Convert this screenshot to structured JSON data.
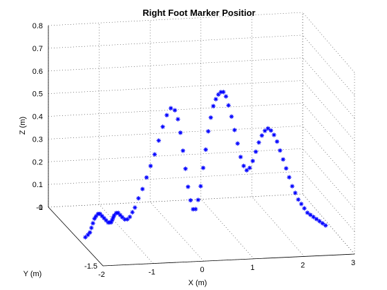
{
  "chart_data": {
    "type": "scatter",
    "title": "Right Foot Marker Positior",
    "xlabel": "X (m)",
    "ylabel": "Y (m)",
    "zlabel": "Z (m)",
    "xlim": [
      -2,
      3
    ],
    "ylim": [
      -1.5,
      -1
    ],
    "zlim": [
      0,
      0.8
    ],
    "xticks": [
      "-2",
      "-1",
      "0",
      "1",
      "2",
      "3"
    ],
    "yticks": [
      "-1.5",
      "-1"
    ],
    "zticks": [
      "0",
      "0.1",
      "0.2",
      "0.3",
      "0.4",
      "0.5",
      "0.6",
      "0.7",
      "0.8"
    ],
    "grid": true,
    "marker": "*",
    "series": [
      {
        "color": "#0000ff",
        "x": [
          -1.83,
          -1.78,
          -1.74,
          -1.71,
          -1.68,
          -1.65,
          -1.62,
          -1.58,
          -1.54,
          -1.5,
          -1.46,
          -1.42,
          -1.38,
          -1.35,
          -1.32,
          -1.3,
          -1.28,
          -1.26,
          -1.22,
          -1.18,
          -1.14,
          -1.1,
          -1.05,
          -1.0,
          -0.95,
          -0.9,
          -0.85,
          -0.78,
          -0.7,
          -0.62,
          -0.54,
          -0.46,
          -0.38,
          -0.3,
          -0.22,
          -0.14,
          -0.06,
          0.0,
          0.05,
          0.1,
          0.15,
          0.2,
          0.25,
          0.3,
          0.35,
          0.4,
          0.45,
          0.5,
          0.55,
          0.6,
          0.65,
          0.7,
          0.75,
          0.8,
          0.85,
          0.9,
          0.95,
          1.0,
          1.06,
          1.12,
          1.18,
          1.24,
          1.3,
          1.36,
          1.42,
          1.48,
          1.54,
          1.6,
          1.66,
          1.72,
          1.78,
          1.84,
          1.9,
          1.96,
          2.02,
          2.08,
          2.14,
          2.2,
          2.26,
          2.32,
          2.38,
          2.44,
          2.5,
          2.56,
          2.62,
          2.68,
          2.74,
          2.8,
          2.86,
          2.92
        ],
        "y": [
          -1.26,
          -1.26,
          -1.26,
          -1.26,
          -1.26,
          -1.26,
          -1.26,
          -1.26,
          -1.26,
          -1.26,
          -1.26,
          -1.26,
          -1.26,
          -1.26,
          -1.26,
          -1.26,
          -1.26,
          -1.26,
          -1.26,
          -1.26,
          -1.26,
          -1.26,
          -1.26,
          -1.26,
          -1.26,
          -1.26,
          -1.26,
          -1.26,
          -1.26,
          -1.26,
          -1.26,
          -1.26,
          -1.26,
          -1.26,
          -1.26,
          -1.26,
          -1.26,
          -1.26,
          -1.26,
          -1.26,
          -1.26,
          -1.26,
          -1.26,
          -1.26,
          -1.26,
          -1.26,
          -1.26,
          -1.26,
          -1.26,
          -1.26,
          -1.26,
          -1.26,
          -1.26,
          -1.26,
          -1.26,
          -1.26,
          -1.26,
          -1.26,
          -1.26,
          -1.26,
          -1.26,
          -1.26,
          -1.26,
          -1.26,
          -1.26,
          -1.26,
          -1.26,
          -1.26,
          -1.26,
          -1.26,
          -1.26,
          -1.26,
          -1.26,
          -1.26,
          -1.26,
          -1.26,
          -1.26,
          -1.26,
          -1.26,
          -1.26,
          -1.26,
          -1.26,
          -1.26,
          -1.26,
          -1.26,
          -1.26,
          -1.26,
          -1.26,
          -1.26,
          -1.26
        ],
        "z": [
          0.0,
          0.01,
          0.02,
          0.04,
          0.06,
          0.08,
          0.09,
          0.1,
          0.1,
          0.09,
          0.08,
          0.07,
          0.06,
          0.06,
          0.06,
          0.07,
          0.08,
          0.09,
          0.1,
          0.1,
          0.09,
          0.08,
          0.07,
          0.07,
          0.08,
          0.1,
          0.12,
          0.16,
          0.2,
          0.25,
          0.3,
          0.35,
          0.41,
          0.47,
          0.52,
          0.55,
          0.54,
          0.5,
          0.44,
          0.36,
          0.28,
          0.2,
          0.14,
          0.1,
          0.1,
          0.14,
          0.2,
          0.28,
          0.36,
          0.44,
          0.5,
          0.55,
          0.58,
          0.6,
          0.61,
          0.61,
          0.59,
          0.55,
          0.5,
          0.44,
          0.38,
          0.32,
          0.28,
          0.26,
          0.27,
          0.3,
          0.34,
          0.38,
          0.41,
          0.43,
          0.44,
          0.43,
          0.41,
          0.38,
          0.34,
          0.3,
          0.26,
          0.22,
          0.18,
          0.15,
          0.12,
          0.1,
          0.08,
          0.06,
          0.05,
          0.04,
          0.03,
          0.02,
          0.01,
          0.0
        ]
      }
    ]
  }
}
